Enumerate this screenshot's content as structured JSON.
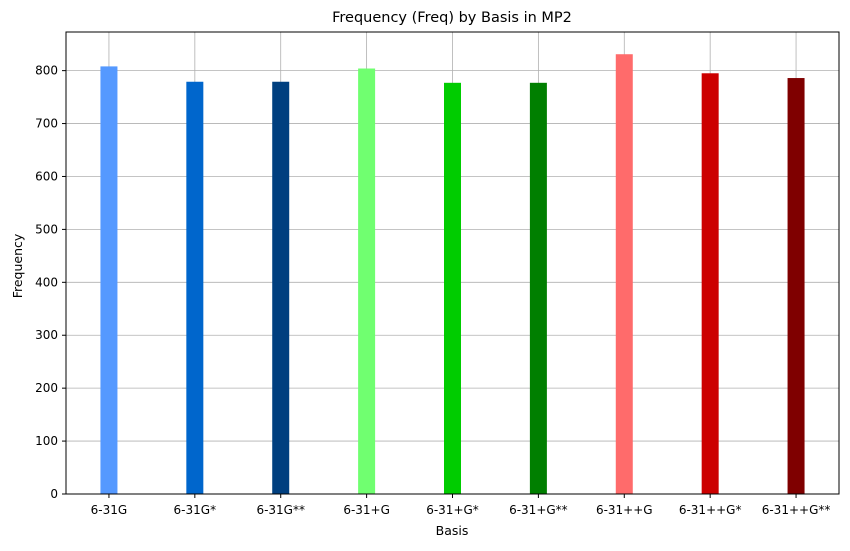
{
  "chart_data": {
    "type": "bar",
    "title": "Frequency (Freq) by Basis in MP2",
    "xlabel": "Basis",
    "ylabel": "Frequency",
    "categories": [
      "6-31G",
      "6-31G*",
      "6-31G**",
      "6-31+G",
      "6-31+G*",
      "6-31+G**",
      "6-31++G",
      "6-31++G*",
      "6-31++G**"
    ],
    "values": [
      808,
      779,
      779,
      804,
      777,
      777,
      831,
      795,
      786
    ],
    "colors": [
      "#5599ff",
      "#0066cc",
      "#003f7f",
      "#70ff70",
      "#00cc00",
      "#007f00",
      "#ff6b6b",
      "#cc0000",
      "#7f0000"
    ],
    "ylim": [
      0,
      873
    ],
    "yticks": [
      0,
      100,
      200,
      300,
      400,
      500,
      600,
      700,
      800
    ],
    "grid": true
  }
}
